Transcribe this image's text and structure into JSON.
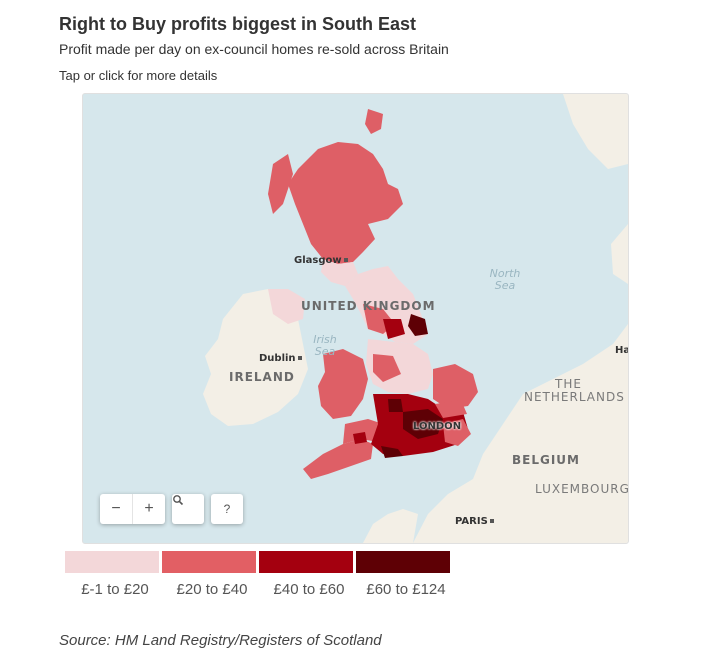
{
  "header": {
    "title": "Right to Buy profits biggest in South East",
    "subtitle": "Profit made per day on ex-council homes re-sold across Britain",
    "hint": "Tap or click for more details"
  },
  "map": {
    "labels": {
      "uk": "UNITED KINGDOM",
      "ireland": "IRELAND",
      "netherlands_1": "THE",
      "netherlands_2": "NETHERLANDS",
      "belgium": "BELGIUM",
      "luxembourg": "LUXEMBOURG",
      "north_sea_1": "North",
      "north_sea_2": "Sea",
      "irish_sea_1": "Irish",
      "irish_sea_2": "Sea",
      "glasgow": "Glasgow",
      "dublin": "Dublin",
      "london": "LONDON",
      "paris": "PARIS",
      "ha": "Ha"
    },
    "colors": {
      "water": "#d6e7ec",
      "land": "#f3efe6",
      "band1": "#f3d7d9",
      "band2": "#de5f66",
      "band3": "#a4000f",
      "band4": "#5e0005"
    },
    "controls": {
      "zoom_out": "−",
      "zoom_in": "+",
      "search_icon": "search-icon",
      "help": "?"
    }
  },
  "legend": {
    "items": [
      {
        "label": "£-1 to £20",
        "color": "#f3d7d9"
      },
      {
        "label": "£20 to £40",
        "color": "#e25f64"
      },
      {
        "label": "£40 to £60",
        "color": "#a4000f"
      },
      {
        "label": "£60 to £124",
        "color": "#5e0005"
      }
    ]
  },
  "source": "Source: HM Land Registry/Registers of Scotland"
}
